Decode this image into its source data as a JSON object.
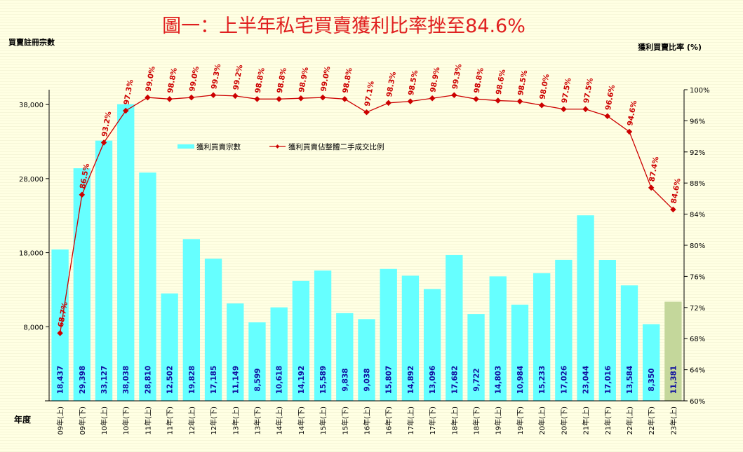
{
  "chart_data": {
    "type": "bar+line",
    "title": "圖一：上半年私宅買賣獲利比率挫至84.6%",
    "ylabel_left": "買賣註冊宗數",
    "ylabel_right": "獲利買賣比率 (%)",
    "xlabel": "年度",
    "ylim_left": [
      -2000,
      40000
    ],
    "yticks_left": [
      8000,
      18000,
      28000,
      38000
    ],
    "yticks_left_labels": [
      "8,000",
      "18,000",
      "28,000",
      "38,000"
    ],
    "ylim_right": [
      60,
      100
    ],
    "yticks_right": [
      60,
      64,
      68,
      72,
      76,
      80,
      84,
      88,
      92,
      96,
      100
    ],
    "legend_placement": "top-center",
    "categories": [
      "09年(上)",
      "09年(下)",
      "10年(上)",
      "10年(下)",
      "11年(上)",
      "11年(下)",
      "12年(上)",
      "12年(下)",
      "13年(上)",
      "13年(下)",
      "14年(上)",
      "14年(下)",
      "15年(上)",
      "15年(下)",
      "16年(上)",
      "16年(下)",
      "17年(上)",
      "17年(下)",
      "18年(上)",
      "18年(下)",
      "19年(上)",
      "19年(下)",
      "20年(上)",
      "20年(下)",
      "21年(上)",
      "21年(下)",
      "22年(上)",
      "22年(下)",
      "23年(上)"
    ],
    "series": [
      {
        "name": "獲利買賣宗數",
        "type": "bar",
        "color": "#66FFFF",
        "highlight_color": "#C4D79B",
        "values": [
          18437,
          29398,
          33127,
          38038,
          28810,
          12502,
          19828,
          17185,
          11149,
          8599,
          10618,
          14192,
          15589,
          9838,
          9038,
          15807,
          14892,
          13096,
          17682,
          9722,
          14803,
          10984,
          15233,
          17026,
          23044,
          17016,
          13584,
          8350,
          11381
        ],
        "labels": [
          "18,437",
          "29,398",
          "33,127",
          "38,038",
          "28,810",
          "12,502",
          "19,828",
          "17,185",
          "11,149",
          "8,599",
          "10,618",
          "14,192",
          "15,589",
          "9,838",
          "9,038",
          "15,807",
          "14,892",
          "13,096",
          "17,682",
          "9,722",
          "14,803",
          "10,984",
          "15,233",
          "17,026",
          "23,044",
          "17,016",
          "13,584",
          "8,350",
          "11,381"
        ]
      },
      {
        "name": "獲利買賣佔整體二手成交比例",
        "type": "line",
        "axis": "right",
        "color": "#CC0000",
        "values": [
          68.7,
          86.5,
          93.2,
          97.3,
          99.0,
          98.8,
          99.0,
          99.3,
          99.2,
          98.8,
          98.8,
          98.9,
          99.0,
          98.8,
          97.1,
          98.3,
          98.5,
          98.9,
          99.3,
          98.8,
          98.6,
          98.5,
          98.0,
          97.5,
          97.5,
          96.6,
          94.6,
          87.4,
          84.6
        ],
        "labels": [
          "68.7%",
          "86.5%",
          "93.2%",
          "97.3%",
          "99.0%",
          "98.8%",
          "99.0%",
          "99.3%",
          "99.2%",
          "98.8%",
          "98.8%",
          "98.9%",
          "99.0%",
          "98.8%",
          "97.1%",
          "98.3%",
          "98.5%",
          "98.9%",
          "99.3%",
          "98.8%",
          "98.6%",
          "98.5%",
          "98.0%",
          "97.5%",
          "97.5%",
          "96.6%",
          "94.6%",
          "87.4%",
          "84.6%"
        ]
      }
    ]
  }
}
